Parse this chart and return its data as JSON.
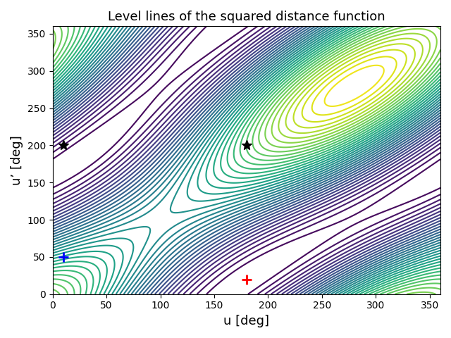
{
  "title": "Level lines of the squared distance function",
  "xlabel": "u [deg]",
  "ylabel": "u’ [deg]",
  "xlim": [
    0,
    360
  ],
  "ylim": [
    0,
    360
  ],
  "xticks": [
    0,
    50,
    100,
    150,
    200,
    250,
    300,
    350
  ],
  "yticks": [
    0,
    50,
    100,
    150,
    200,
    250,
    300,
    350
  ],
  "red_cross": [
    180,
    20
  ],
  "blue_cross": [
    10,
    50
  ],
  "star1": [
    10,
    200
  ],
  "star2": [
    180,
    200
  ],
  "n_levels": 40,
  "cmap": "viridis",
  "title_fontsize": 13,
  "label_fontsize": 13,
  "N": 600
}
